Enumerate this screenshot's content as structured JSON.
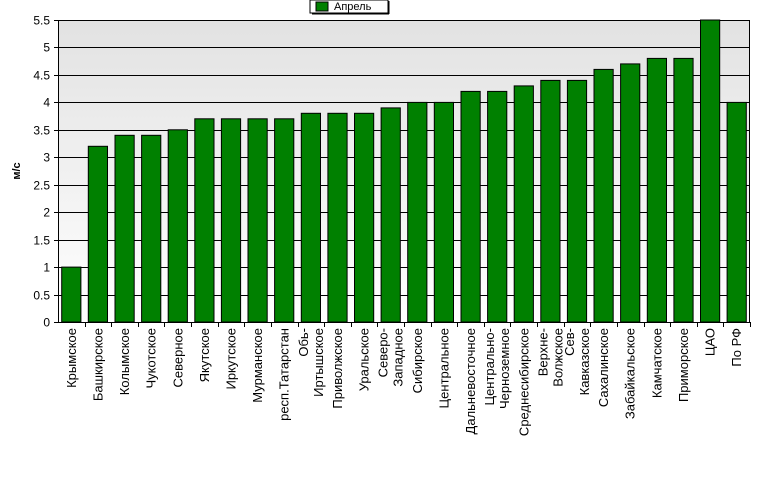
{
  "chart_data": {
    "type": "bar",
    "ylabel": "м/с",
    "ylim": [
      0,
      5.5
    ],
    "ytick_step": 0.5,
    "yticks": [
      "0",
      "0.5",
      "1",
      "1.5",
      "2",
      "2.5",
      "3",
      "3.5",
      "4",
      "4.5",
      "5",
      "5.5"
    ],
    "grid": true,
    "legend_position": "top-center",
    "categories": [
      "Крымское",
      "Башкирское",
      "Колымское",
      "Чукотское",
      "Северное",
      "Якутское",
      "Иркутское",
      "Мурманское",
      "респ.Татарстан",
      "Обь-Иртышское",
      "Приволжское",
      "Уральское",
      "Северо-Западное",
      "Сибирское",
      "Центральное",
      "Дальневосточное",
      "Центрально-Черноземное",
      "Среднесибирское",
      "Верхне-Волжское",
      "Сев-Кавказское",
      "Сахалинское",
      "Забайкальское",
      "Камчатское",
      "Приморское",
      "ЦАО",
      "По РФ"
    ],
    "category_lines": [
      [
        "Крымское"
      ],
      [
        "Башкирское"
      ],
      [
        "Колымское"
      ],
      [
        "Чукотское"
      ],
      [
        "Северное"
      ],
      [
        "Якутское"
      ],
      [
        "Иркутское"
      ],
      [
        "Мурманское"
      ],
      [
        "респ.Татарстан"
      ],
      [
        "Обь-",
        "Иртышское"
      ],
      [
        "Приволжское"
      ],
      [
        "Уральское"
      ],
      [
        "Северо-",
        "Западное"
      ],
      [
        "Сибирское"
      ],
      [
        "Центральное"
      ],
      [
        "Дальневосточное"
      ],
      [
        "Центрально-",
        "Черноземное"
      ],
      [
        "Среднесибирское"
      ],
      [
        "Верхне-",
        "Волжское"
      ],
      [
        "Сев-",
        "Кавказское"
      ],
      [
        "Сахалинское"
      ],
      [
        "Забайкальское"
      ],
      [
        "Камчатское"
      ],
      [
        "Приморское"
      ],
      [
        "ЦАО"
      ],
      [
        "По РФ"
      ]
    ],
    "series": [
      {
        "name": "Апрель",
        "color": "#008000",
        "values": [
          1.0,
          3.2,
          3.4,
          3.4,
          3.5,
          3.7,
          3.7,
          3.7,
          3.7,
          3.8,
          3.8,
          3.8,
          3.9,
          4.0,
          4.0,
          4.2,
          4.2,
          4.3,
          4.4,
          4.4,
          4.6,
          4.7,
          4.8,
          4.8,
          5.5,
          4.0
        ]
      }
    ]
  },
  "colors": {
    "bar": "#008000",
    "bar_outline": "#000000",
    "plot_gradient_top": "#e2e2e2",
    "plot_gradient_bottom": "#ffffff",
    "grid": "#000000"
  }
}
